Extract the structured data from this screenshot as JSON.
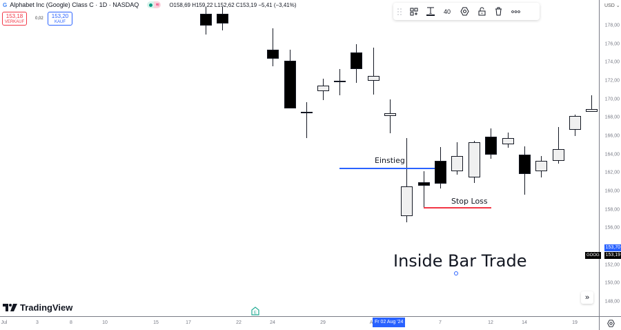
{
  "header": {
    "symbol_title": "Alphabet Inc (Google) Class C · 1D · NASDAQ",
    "ohlc": {
      "open": "O158,69",
      "high": "H159,22",
      "low": "L152,62",
      "close": "C153,19",
      "change": "−5,41 (−3,41%)"
    },
    "sell": {
      "price": "153,18",
      "label": "VERKAUF"
    },
    "buy": {
      "price": "153,20",
      "label": "KAUF"
    },
    "spread": "0,02"
  },
  "toolbar": {
    "items": [
      "drag-handle",
      "template",
      "text-color",
      "font-size",
      "settings",
      "lock",
      "delete",
      "more"
    ],
    "font_size": "40"
  },
  "price_axis": {
    "currency": "USD",
    "labels": [
      "178,00",
      "176,00",
      "174,00",
      "172,00",
      "170,00",
      "168,00",
      "166,00",
      "164,00",
      "162,00",
      "160,00",
      "158,00",
      "156,00",
      "152,00",
      "150,00",
      "148,00"
    ],
    "current_price_tag": "153,70",
    "last_price_tag": "153,19",
    "symbol_tag": "GOOG",
    "accent_color": "#2962ff"
  },
  "time_axis": {
    "labels": [
      "Jul",
      "3",
      "8",
      "10",
      "15",
      "17",
      "22",
      "24",
      "29",
      "Au",
      "7",
      "12",
      "14",
      "19"
    ],
    "crosshair_date": "Fr 02 Aug '24"
  },
  "annotations": {
    "entry_label": "Einstieg",
    "entry_color": "#2962ff",
    "stop_label": "Stop Loss",
    "stop_color": "#f23645",
    "title": "Inside Bar Trade"
  },
  "branding": {
    "logo_text": "TradingView"
  },
  "earnings_badge": "E",
  "chart_data": {
    "type": "candlestick",
    "title": "Alphabet Inc (Google) Class C · 1D · NASDAQ",
    "ylim": [
      147,
      180
    ],
    "candles": [
      {
        "x": 298,
        "open": 179.3,
        "close": 178.0,
        "high": 180.0,
        "low": 177.0,
        "dir": "bear"
      },
      {
        "x": 322,
        "open": 179.3,
        "close": 178.2,
        "high": 180.0,
        "low": 177.5,
        "dir": "bear"
      },
      {
        "x": 395,
        "open": 175.4,
        "close": 174.4,
        "high": 177.7,
        "low": 173.6,
        "dir": "bear"
      },
      {
        "x": 420,
        "open": 174.2,
        "close": 169.0,
        "high": 175.4,
        "low": 169.0,
        "dir": "bear"
      },
      {
        "x": 444,
        "open": 168.6,
        "close": 168.5,
        "high": 169.7,
        "low": 165.8,
        "dir": "bear"
      },
      {
        "x": 468,
        "open": 170.9,
        "close": 171.5,
        "high": 172.2,
        "low": 169.9,
        "dir": "bull"
      },
      {
        "x": 492,
        "open": 171.9,
        "close": 172.0,
        "high": 173.3,
        "low": 170.4,
        "dir": "bull"
      },
      {
        "x": 516,
        "open": 175.1,
        "close": 173.3,
        "high": 176.0,
        "low": 171.8,
        "dir": "bear"
      },
      {
        "x": 541,
        "open": 172.0,
        "close": 172.5,
        "high": 175.6,
        "low": 170.5,
        "dir": "bull"
      },
      {
        "x": 565,
        "open": 168.2,
        "close": 168.5,
        "high": 170.0,
        "low": 166.3,
        "dir": "bull"
      },
      {
        "x": 589,
        "open": 157.3,
        "close": 160.5,
        "high": 165.8,
        "low": 156.6,
        "dir": "bull"
      },
      {
        "x": 614,
        "open": 161.0,
        "close": 160.6,
        "high": 162.2,
        "low": 158.2,
        "dir": "bear"
      },
      {
        "x": 638,
        "open": 163.3,
        "close": 160.8,
        "high": 164.8,
        "low": 160.3,
        "dir": "bear"
      },
      {
        "x": 662,
        "open": 162.2,
        "close": 163.8,
        "high": 165.3,
        "low": 161.8,
        "dir": "bull"
      },
      {
        "x": 687,
        "open": 161.5,
        "close": 165.3,
        "high": 165.5,
        "low": 160.9,
        "dir": "bull"
      },
      {
        "x": 711,
        "open": 165.9,
        "close": 164.0,
        "high": 166.8,
        "low": 163.5,
        "dir": "bear"
      },
      {
        "x": 736,
        "open": 165.1,
        "close": 165.8,
        "high": 166.4,
        "low": 164.7,
        "dir": "bull"
      },
      {
        "x": 760,
        "open": 164.0,
        "close": 161.9,
        "high": 164.9,
        "low": 159.6,
        "dir": "bear"
      },
      {
        "x": 784,
        "open": 162.2,
        "close": 163.3,
        "high": 163.8,
        "low": 161.5,
        "dir": "bull"
      },
      {
        "x": 809,
        "open": 163.3,
        "close": 164.6,
        "high": 167.0,
        "low": 163.0,
        "dir": "bull"
      },
      {
        "x": 833,
        "open": 166.7,
        "close": 168.2,
        "high": 168.3,
        "low": 166.0,
        "dir": "bull"
      },
      {
        "x": 857,
        "open": 168.6,
        "close": 168.9,
        "high": 170.4,
        "low": 168.6,
        "dir": "bull"
      }
    ],
    "lines": [
      {
        "name": "Einstieg",
        "price": 162.5,
        "x1": 492,
        "x2": 630,
        "color": "#2962ff"
      },
      {
        "name": "Stop Loss",
        "price": 158.2,
        "x1": 614,
        "x2": 712,
        "color": "#f23645"
      }
    ]
  }
}
